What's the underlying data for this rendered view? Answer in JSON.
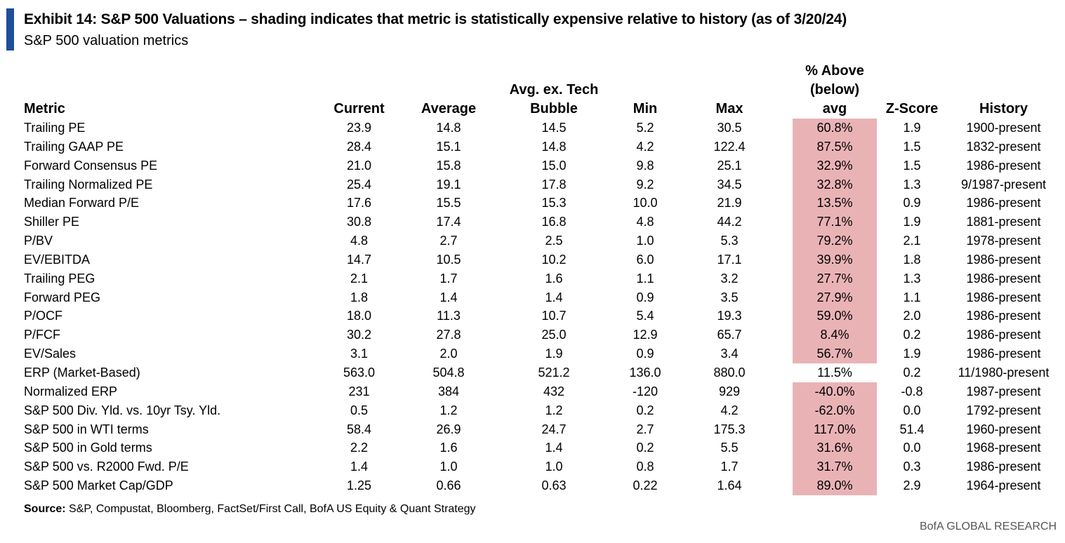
{
  "header": {
    "title": "Exhibit 14: S&P 500 Valuations – shading indicates that metric is statistically expensive relative to history (as of 3/20/24)",
    "subtitle": "S&P 500 valuation metrics",
    "accent_color": "#1f4e9c",
    "shade_color": "#e9b3b6"
  },
  "chart_data": {
    "type": "table",
    "columns": [
      "Metric",
      "Current",
      "Average",
      "Avg. ex. Tech Bubble",
      "Min",
      "Max",
      "% Above (below) avg",
      "Z-Score",
      "History"
    ],
    "header_lines": [
      [
        "Metric"
      ],
      [
        "Current"
      ],
      [
        "Average"
      ],
      [
        "Avg. ex. Tech",
        "Bubble"
      ],
      [
        "Min"
      ],
      [
        "Max"
      ],
      [
        "% Above",
        "(below)",
        "avg"
      ],
      [
        "Z-Score"
      ],
      [
        "History"
      ]
    ],
    "rows": [
      {
        "metric": "Trailing PE",
        "current": "23.9",
        "average": "14.8",
        "avg_ex_tech": "14.5",
        "min": "5.2",
        "max": "30.5",
        "pct_vs_avg": "60.8%",
        "z_score": "1.9",
        "history": "1900-present",
        "shaded": true
      },
      {
        "metric": "Trailing GAAP PE",
        "current": "28.4",
        "average": "15.1",
        "avg_ex_tech": "14.8",
        "min": "4.2",
        "max": "122.4",
        "pct_vs_avg": "87.5%",
        "z_score": "1.5",
        "history": "1832-present",
        "shaded": true
      },
      {
        "metric": "Forward Consensus PE",
        "current": "21.0",
        "average": "15.8",
        "avg_ex_tech": "15.0",
        "min": "9.8",
        "max": "25.1",
        "pct_vs_avg": "32.9%",
        "z_score": "1.5",
        "history": "1986-present",
        "shaded": true
      },
      {
        "metric": "Trailing Normalized PE",
        "current": "25.4",
        "average": "19.1",
        "avg_ex_tech": "17.8",
        "min": "9.2",
        "max": "34.5",
        "pct_vs_avg": "32.8%",
        "z_score": "1.3",
        "history": "9/1987-present",
        "shaded": true
      },
      {
        "metric": "Median Forward P/E",
        "current": "17.6",
        "average": "15.5",
        "avg_ex_tech": "15.3",
        "min": "10.0",
        "max": "21.9",
        "pct_vs_avg": "13.5%",
        "z_score": "0.9",
        "history": "1986-present",
        "shaded": true
      },
      {
        "metric": "Shiller PE",
        "current": "30.8",
        "average": "17.4",
        "avg_ex_tech": "16.8",
        "min": "4.8",
        "max": "44.2",
        "pct_vs_avg": "77.1%",
        "z_score": "1.9",
        "history": "1881-present",
        "shaded": true
      },
      {
        "metric": "P/BV",
        "current": "4.8",
        "average": "2.7",
        "avg_ex_tech": "2.5",
        "min": "1.0",
        "max": "5.3",
        "pct_vs_avg": "79.2%",
        "z_score": "2.1",
        "history": "1978-present",
        "shaded": true
      },
      {
        "metric": "EV/EBITDA",
        "current": "14.7",
        "average": "10.5",
        "avg_ex_tech": "10.2",
        "min": "6.0",
        "max": "17.1",
        "pct_vs_avg": "39.9%",
        "z_score": "1.8",
        "history": "1986-present",
        "shaded": true
      },
      {
        "metric": "Trailing PEG",
        "current": "2.1",
        "average": "1.7",
        "avg_ex_tech": "1.6",
        "min": "1.1",
        "max": "3.2",
        "pct_vs_avg": "27.7%",
        "z_score": "1.3",
        "history": "1986-present",
        "shaded": true
      },
      {
        "metric": "Forward PEG",
        "current": "1.8",
        "average": "1.4",
        "avg_ex_tech": "1.4",
        "min": "0.9",
        "max": "3.5",
        "pct_vs_avg": "27.9%",
        "z_score": "1.1",
        "history": "1986-present",
        "shaded": true
      },
      {
        "metric": "P/OCF",
        "current": "18.0",
        "average": "11.3",
        "avg_ex_tech": "10.7",
        "min": "5.4",
        "max": "19.3",
        "pct_vs_avg": "59.0%",
        "z_score": "2.0",
        "history": "1986-present",
        "shaded": true
      },
      {
        "metric": "P/FCF",
        "current": "30.2",
        "average": "27.8",
        "avg_ex_tech": "25.0",
        "min": "12.9",
        "max": "65.7",
        "pct_vs_avg": "8.4%",
        "z_score": "0.2",
        "history": "1986-present",
        "shaded": true
      },
      {
        "metric": "EV/Sales",
        "current": "3.1",
        "average": "2.0",
        "avg_ex_tech": "1.9",
        "min": "0.9",
        "max": "3.4",
        "pct_vs_avg": "56.7%",
        "z_score": "1.9",
        "history": "1986-present",
        "shaded": true
      },
      {
        "metric": "ERP (Market-Based)",
        "current": "563.0",
        "average": "504.8",
        "avg_ex_tech": "521.2",
        "min": "136.0",
        "max": "880.0",
        "pct_vs_avg": "11.5%",
        "z_score": "0.2",
        "history": "11/1980-present",
        "shaded": false
      },
      {
        "metric": "Normalized ERP",
        "current": "231",
        "average": "384",
        "avg_ex_tech": "432",
        "min": "-120",
        "max": "929",
        "pct_vs_avg": "-40.0%",
        "z_score": "-0.8",
        "history": "1987-present",
        "shaded": true
      },
      {
        "metric": "S&P 500 Div. Yld. vs. 10yr Tsy. Yld.",
        "current": "0.5",
        "average": "1.2",
        "avg_ex_tech": "1.2",
        "min": "0.2",
        "max": "4.2",
        "pct_vs_avg": "-62.0%",
        "z_score": "0.0",
        "history": "1792-present",
        "shaded": true
      },
      {
        "metric": "S&P 500 in WTI terms",
        "current": "58.4",
        "average": "26.9",
        "avg_ex_tech": "24.7",
        "min": "2.7",
        "max": "175.3",
        "pct_vs_avg": "117.0%",
        "z_score": "51.4",
        "history": "1960-present",
        "shaded": true
      },
      {
        "metric": "S&P 500 in Gold terms",
        "current": "2.2",
        "average": "1.6",
        "avg_ex_tech": "1.4",
        "min": "0.2",
        "max": "5.5",
        "pct_vs_avg": "31.6%",
        "z_score": "0.0",
        "history": "1968-present",
        "shaded": true
      },
      {
        "metric": "S&P 500 vs. R2000 Fwd. P/E",
        "current": "1.4",
        "average": "1.0",
        "avg_ex_tech": "1.0",
        "min": "0.8",
        "max": "1.7",
        "pct_vs_avg": "31.7%",
        "z_score": "0.3",
        "history": "1986-present",
        "shaded": true
      },
      {
        "metric": "S&P 500 Market Cap/GDP",
        "current": "1.25",
        "average": "0.66",
        "avg_ex_tech": "0.63",
        "min": "0.22",
        "max": "1.64",
        "pct_vs_avg": "89.0%",
        "z_score": "2.9",
        "history": "1964-present",
        "shaded": true
      }
    ]
  },
  "footer": {
    "source_label": "Source:",
    "source_text": " S&P, Compustat, Bloomberg, FactSet/First Call, BofA US Equity & Quant Strategy",
    "brand": "BofA GLOBAL RESEARCH"
  }
}
